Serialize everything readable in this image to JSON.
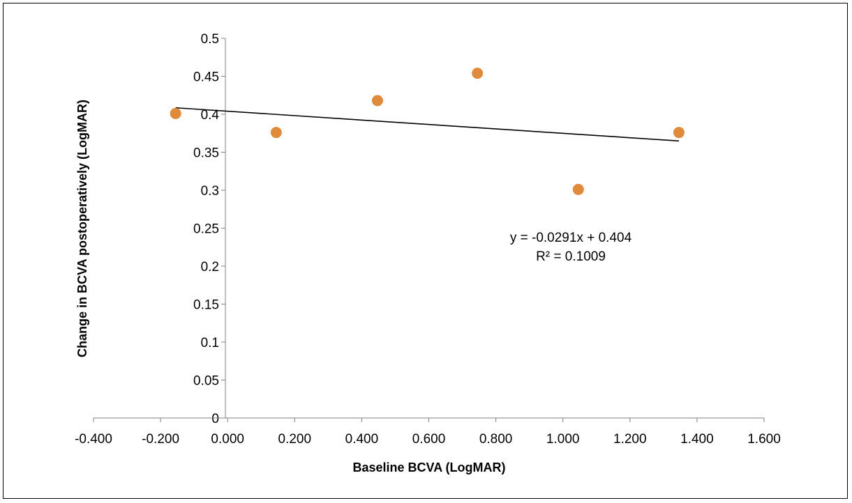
{
  "chart_data": {
    "type": "scatter",
    "xlabel": "Baseline BCVA (LogMAR)",
    "ylabel": "Change in BCVA postoperatively (LogMAR)",
    "xlim": [
      -0.4,
      1.6
    ],
    "ylim": [
      0,
      0.5
    ],
    "x_ticks": [
      "-0.400",
      "-0.200",
      "0.000",
      "0.200",
      "0.400",
      "0.600",
      "0.800",
      "1.000",
      "1.200",
      "1.400",
      "1.600"
    ],
    "y_ticks": [
      "0",
      "0.05",
      "0.1",
      "0.15",
      "0.2",
      "0.25",
      "0.3",
      "0.35",
      "0.4",
      "0.45",
      "0.5"
    ],
    "grid": false,
    "points": [
      {
        "x": -0.155,
        "y": 0.401
      },
      {
        "x": 0.145,
        "y": 0.376
      },
      {
        "x": 0.447,
        "y": 0.418
      },
      {
        "x": 0.745,
        "y": 0.454
      },
      {
        "x": 1.046,
        "y": 0.301
      },
      {
        "x": 1.346,
        "y": 0.376
      }
    ],
    "trendline": {
      "type": "linear",
      "slope": -0.0291,
      "intercept": 0.404,
      "x_range": [
        -0.155,
        1.346
      ],
      "equation": "y = -0.0291x + 0.404",
      "r_squared": "R² = 0.1009"
    },
    "marker_color": "#E08A3C",
    "line_color": "#000000"
  }
}
